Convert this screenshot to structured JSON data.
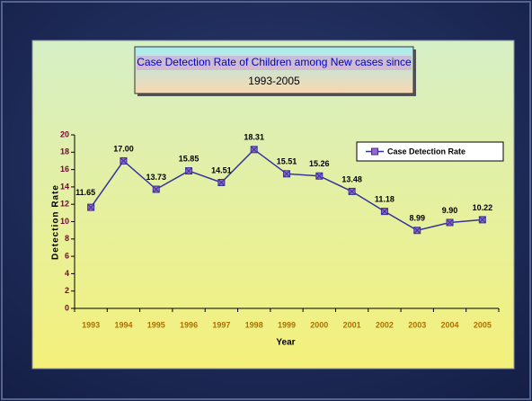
{
  "chart_data": {
    "type": "line",
    "title": "Case Detection Rate of Children among New cases since",
    "subtitle": "1993-2005",
    "x_label": "Year",
    "y_label": "Detection Rate",
    "categories": [
      "1993",
      "1994",
      "1995",
      "1996",
      "1997",
      "1998",
      "1999",
      "2000",
      "2001",
      "2002",
      "2003",
      "2004",
      "2005"
    ],
    "series": [
      {
        "name": "Case Detection Rate",
        "color": "#333399",
        "marker_color": "#9966cc",
        "values": [
          11.65,
          17,
          13.73,
          15.85,
          14.51,
          18.31,
          15.51,
          15.26,
          13.48,
          11.18,
          8.99,
          9.9,
          10.22
        ],
        "value_labels": [
          "11.65",
          "17.00",
          "13.73",
          "15.85",
          "14.51",
          "18.31",
          "15.51",
          "15.26",
          "13.48",
          "11.18",
          "8.99",
          "9.90",
          "10.22"
        ]
      }
    ],
    "ylim": [
      0,
      20
    ],
    "yticks": [
      0,
      2,
      4,
      6,
      8,
      10,
      12,
      14,
      16,
      18,
      20
    ],
    "grid": false,
    "legend": "upper right"
  }
}
